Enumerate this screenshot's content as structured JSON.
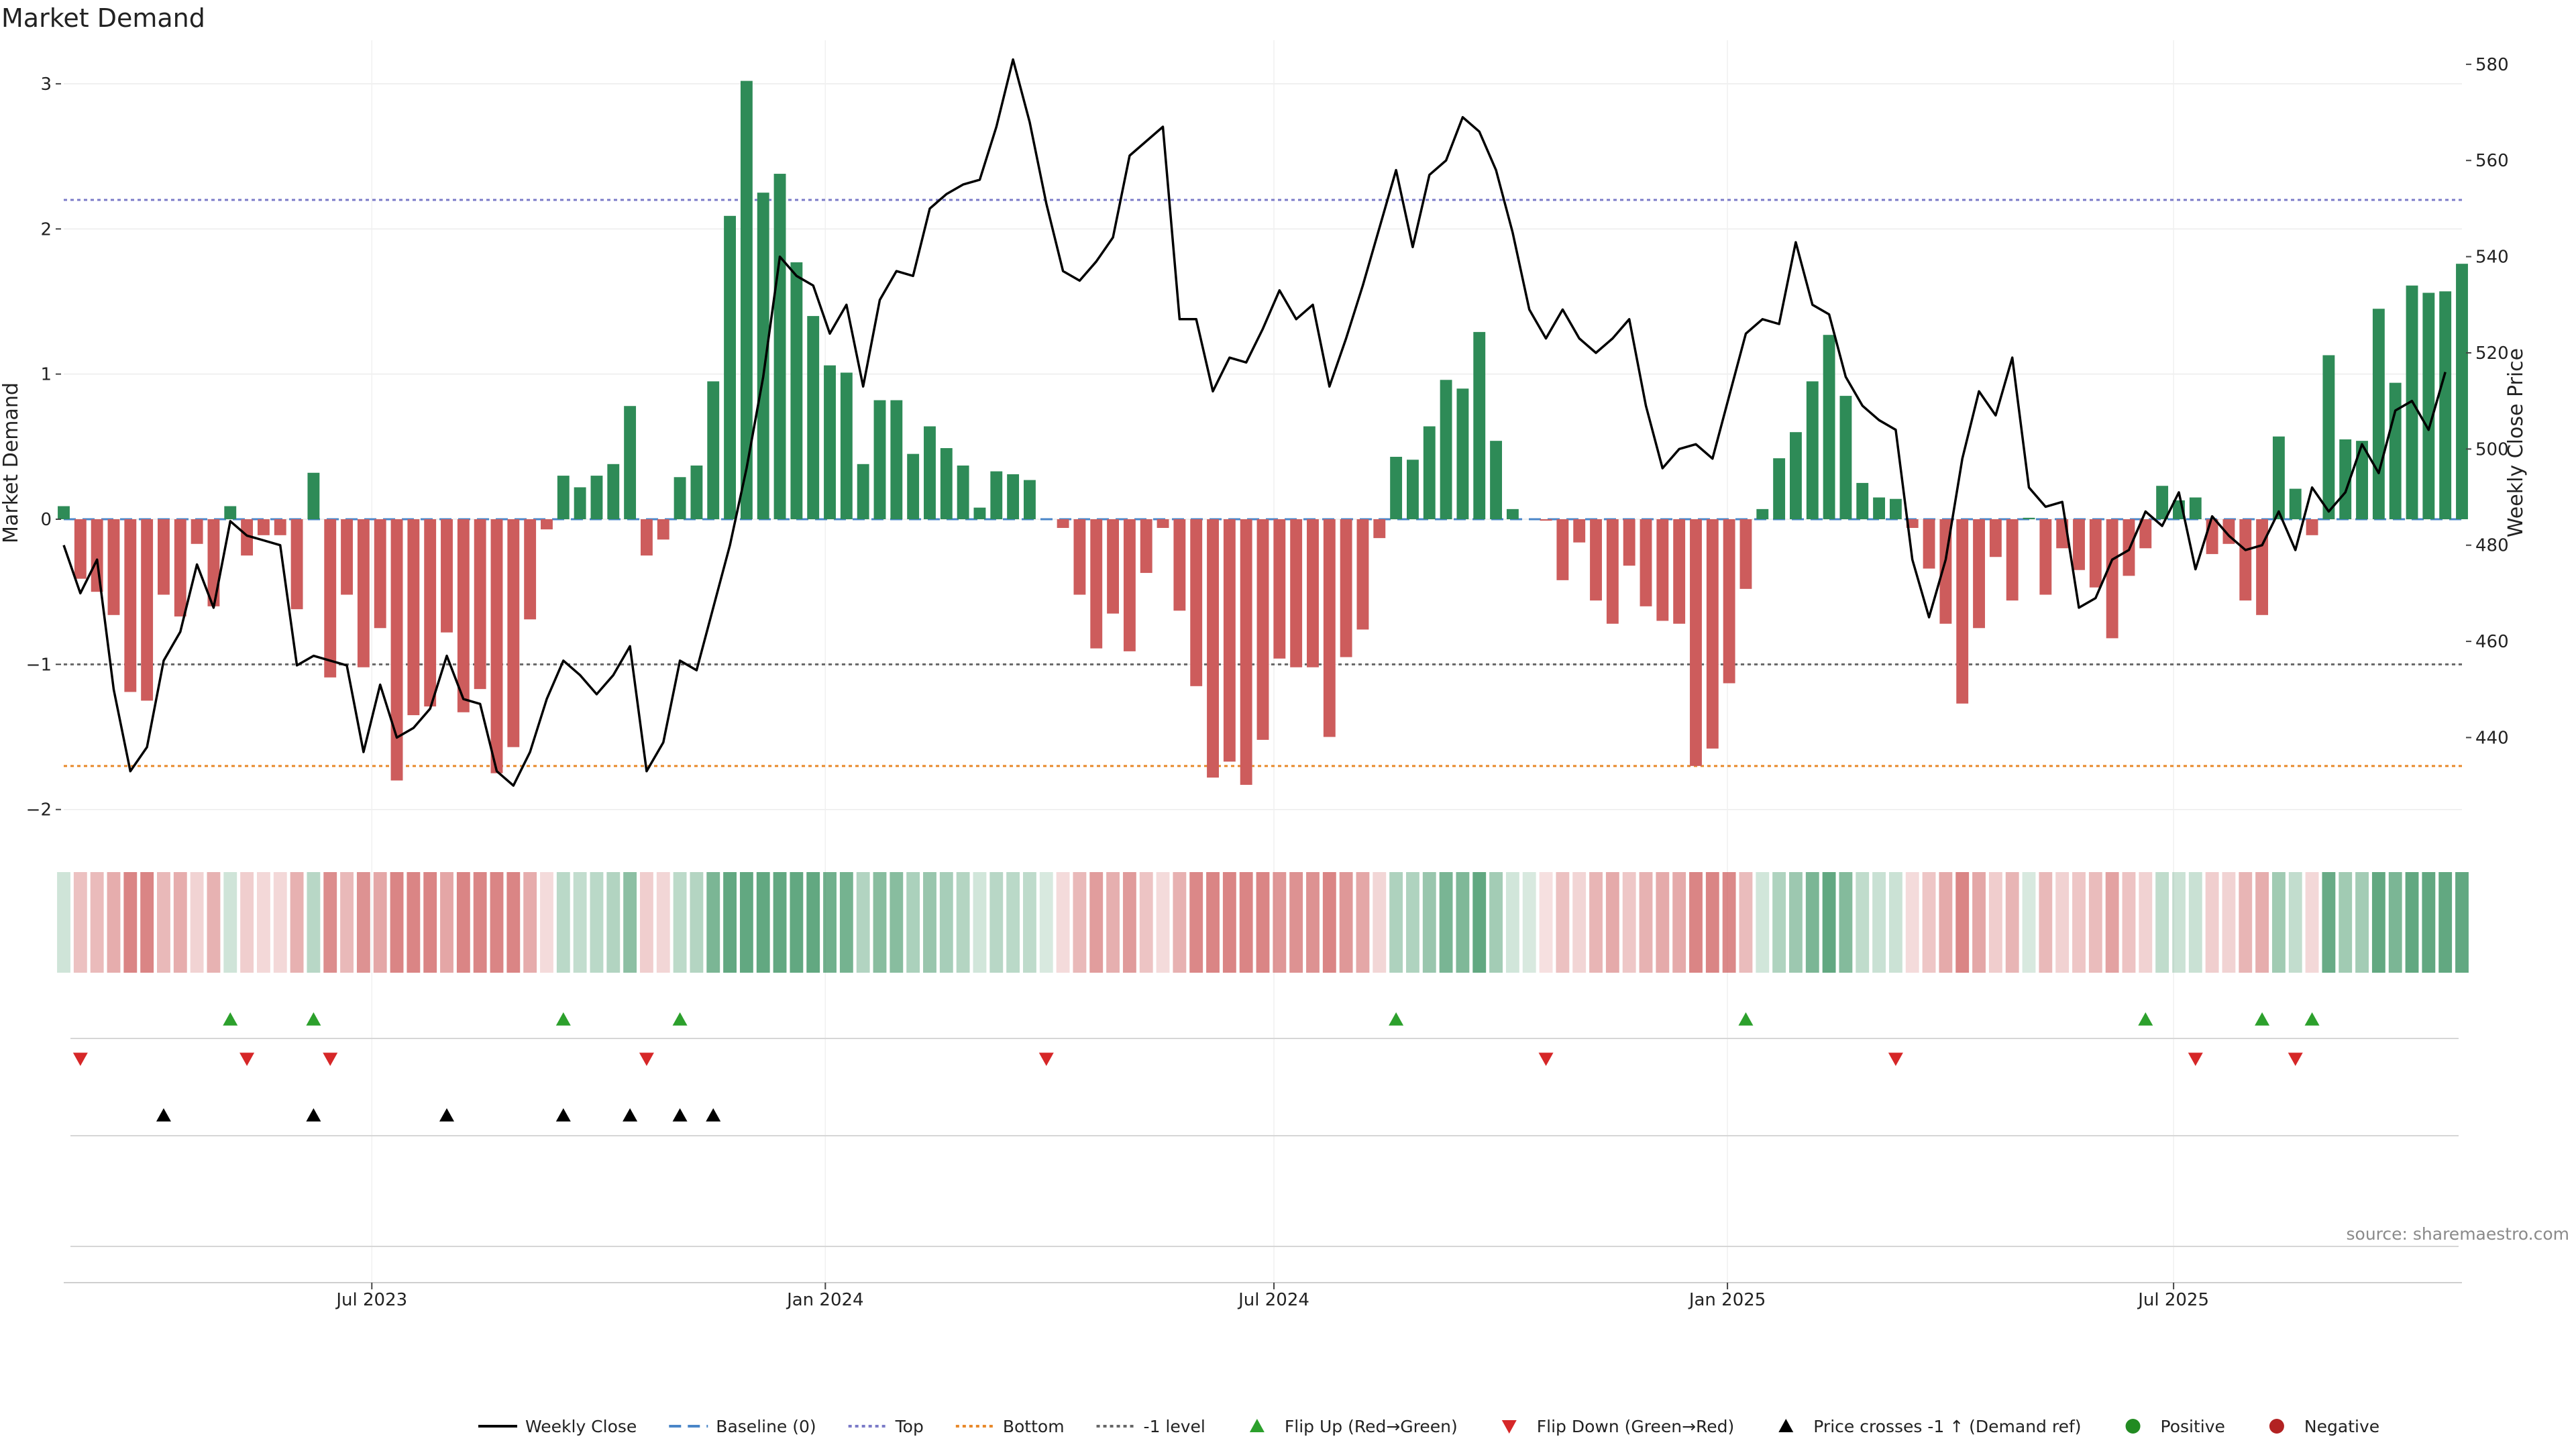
{
  "chart_data": {
    "type": "bar",
    "title": "Market Demand",
    "ylabel_left": "Market Demand",
    "ylabel_right": "Weekly Close Price",
    "ylim_left": [
      -2.2,
      3.3
    ],
    "ylim_right": [
      419,
      585
    ],
    "yticks_left": [
      {
        "value": 3,
        "label": "3"
      },
      {
        "value": 2,
        "label": "2"
      },
      {
        "value": 1,
        "label": "1"
      },
      {
        "value": 0,
        "label": "0"
      },
      {
        "value": -1,
        "label": "−1"
      },
      {
        "value": -2,
        "label": "−2"
      }
    ],
    "yticks_right": [
      {
        "value": 580,
        "label": "580"
      },
      {
        "value": 560,
        "label": "560"
      },
      {
        "value": 540,
        "label": "540"
      },
      {
        "value": 520,
        "label": "520"
      },
      {
        "value": 500,
        "label": "500"
      },
      {
        "value": 480,
        "label": "480"
      },
      {
        "value": 460,
        "label": "460"
      },
      {
        "value": 440,
        "label": "440"
      }
    ],
    "x_start_date": "2023-02-26",
    "x_end_date": "2025-10-26",
    "xticks": [
      {
        "date": "2023-07-01",
        "label": "Jul 2023"
      },
      {
        "date": "2024-01-01",
        "label": "Jan 2024"
      },
      {
        "date": "2024-07-01",
        "label": "Jul 2024"
      },
      {
        "date": "2025-01-01",
        "label": "Jan 2025"
      },
      {
        "date": "2025-07-01",
        "label": "Jul 2025"
      }
    ],
    "reference_lines": [
      {
        "name": "Top",
        "value": 2.2,
        "color": "#7b7bc8",
        "style": "dotted"
      },
      {
        "name": "Bottom",
        "value": -1.7,
        "color": "#e8892a",
        "style": "dotted"
      },
      {
        "name": "-1 level",
        "value": -1,
        "color": "#666666",
        "style": "dotted"
      },
      {
        "name": "Baseline (0)",
        "value": 0,
        "color": "#4a86c8",
        "style": "dashed"
      }
    ],
    "demand": [
      0.09,
      -0.41,
      -0.5,
      -0.66,
      -1.19,
      -1.25,
      -0.52,
      -0.67,
      -0.17,
      -0.6,
      0.09,
      -0.25,
      -0.11,
      -0.11,
      -0.62,
      0.32,
      -1.09,
      -0.52,
      -1.02,
      -0.75,
      -1.8,
      -1.35,
      -1.29,
      -0.78,
      -1.33,
      -1.17,
      -1.75,
      -1.57,
      -0.69,
      -0.07,
      0.3,
      0.22,
      0.3,
      0.38,
      0.78,
      -0.25,
      -0.14,
      0.29,
      0.37,
      0.95,
      2.09,
      3.02,
      2.25,
      2.38,
      1.77,
      1.4,
      1.06,
      1.01,
      0.38,
      0.82,
      0.82,
      0.45,
      0.64,
      0.49,
      0.37,
      0.08,
      0.33,
      0.31,
      0.27,
      0,
      -0.06,
      -0.52,
      -0.89,
      -0.65,
      -0.91,
      -0.37,
      -0.06,
      -0.63,
      -1.15,
      -1.78,
      -1.67,
      -1.83,
      -1.52,
      -0.96,
      -1.02,
      -1.02,
      -1.5,
      -0.95,
      -0.76,
      -0.13,
      0.43,
      0.41,
      0.64,
      0.96,
      0.9,
      1.29,
      0.54,
      0.07,
      0,
      -0.01,
      -0.42,
      -0.16,
      -0.56,
      -0.72,
      -0.32,
      -0.6,
      -0.7,
      -0.72,
      -1.7,
      -1.58,
      -1.13,
      -0.48,
      0.07,
      0.42,
      0.6,
      0.95,
      1.27,
      0.85,
      0.25,
      0.15,
      0.14,
      -0.06,
      -0.34,
      -0.72,
      -1.27,
      -0.75,
      -0.26,
      -0.56,
      0.01,
      -0.52,
      -0.2,
      -0.35,
      -0.47,
      -0.82,
      -0.39,
      -0.2,
      0.23,
      0.13,
      0.15,
      -0.24,
      -0.17,
      -0.56,
      -0.66,
      0.57,
      0.21,
      -0.11,
      1.13,
      0.55,
      0.54,
      1.45,
      0.94,
      1.61,
      1.56,
      1.57,
      1.76
    ],
    "close": [
      480,
      470,
      477,
      450,
      433,
      438,
      456,
      462,
      476,
      467,
      485,
      482,
      481,
      480,
      455,
      457,
      456,
      455,
      437,
      451,
      440,
      442,
      446,
      457,
      448,
      447,
      433,
      430,
      437,
      448,
      456,
      453,
      449,
      453,
      459,
      433,
      439,
      456,
      454,
      467,
      480,
      496,
      515,
      540,
      536,
      534,
      524,
      530,
      513,
      531,
      537,
      536,
      550,
      553,
      555,
      556,
      567,
      581,
      568,
      551,
      537,
      535,
      539,
      544,
      561,
      564,
      567,
      527,
      527,
      512,
      519,
      518,
      525,
      533,
      527,
      530,
      513,
      523,
      534,
      546,
      558,
      542,
      557,
      560,
      569,
      566,
      558,
      545,
      529,
      523,
      529,
      523,
      520,
      523,
      527,
      509,
      496,
      500,
      501,
      498,
      511,
      524,
      527,
      526,
      543,
      530,
      528,
      515,
      509,
      506,
      504,
      477,
      465,
      477,
      498,
      512,
      507,
      519,
      492,
      488,
      489,
      467,
      469,
      477,
      479,
      487,
      484,
      491,
      475,
      486,
      482,
      479,
      480,
      487,
      479,
      492,
      487,
      491,
      501,
      495,
      508,
      510,
      504,
      516
    ],
    "flip_up_idx": [
      10,
      15,
      30,
      37,
      80,
      101,
      125,
      132,
      135
    ],
    "flip_down_idx": [
      1,
      11,
      16,
      35,
      59,
      89,
      110,
      128,
      134
    ],
    "price_cross_idx": [
      6,
      15,
      23,
      30,
      34,
      37,
      39
    ],
    "colors": {
      "positive_bar": "#2e8b57",
      "negative_bar": "#cd5c5c",
      "close_line": "#000000",
      "flip_up": "#2ca02c",
      "flip_down": "#d62728",
      "price_cross": "#000000",
      "positive_dot": "#228b22",
      "negative_dot": "#b22222"
    },
    "legend": [
      {
        "key": "close",
        "label": "Weekly Close"
      },
      {
        "key": "baseline",
        "label": "Baseline (0)"
      },
      {
        "key": "top",
        "label": "Top"
      },
      {
        "key": "bottom",
        "label": "Bottom"
      },
      {
        "key": "minus1",
        "label": "-1 level"
      },
      {
        "key": "flipup",
        "label": "Flip Up (Red→Green)"
      },
      {
        "key": "flipdown",
        "label": "Flip Down (Green→Red)"
      },
      {
        "key": "cross",
        "label": "Price crosses -1 ↑ (Demand ref)"
      },
      {
        "key": "positive",
        "label": "Positive"
      },
      {
        "key": "negative",
        "label": "Negative"
      }
    ],
    "legend_position": "bottom-center",
    "grid": true
  },
  "source_text": "source: sharemaestro.com"
}
